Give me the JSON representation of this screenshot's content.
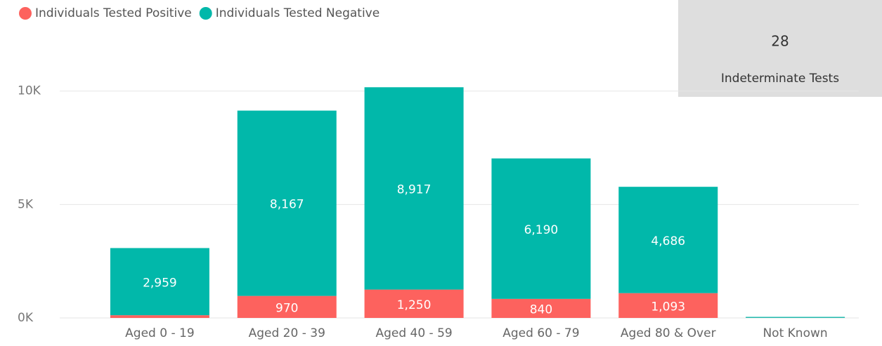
{
  "chart_data": {
    "type": "stacked-bar",
    "categories": [
      "Aged 0 - 19",
      "Aged 20 - 39",
      "Aged 40 - 59",
      "Aged 60 - 79",
      "Aged 80 & Over",
      "Not Known"
    ],
    "series": [
      {
        "name": "Individuals Tested Positive",
        "color": "#FD625E",
        "values": [
          120,
          970,
          1250,
          840,
          1093,
          5
        ],
        "value_labels": [
          null,
          "970",
          "1,250",
          "840",
          "1,093",
          null
        ]
      },
      {
        "name": "Individuals Tested Negative",
        "color": "#01B8AA",
        "values": [
          2959,
          8167,
          8917,
          6190,
          4686,
          40
        ],
        "value_labels": [
          "2,959",
          "8,167",
          "8,917",
          "6,190",
          "4,686",
          null
        ]
      }
    ],
    "ylim": [
      0,
      10300
    ],
    "yticks": [
      {
        "value": 0,
        "label": "0K"
      },
      {
        "value": 5000,
        "label": "5K"
      },
      {
        "value": 10000,
        "label": "10K"
      }
    ],
    "grid": true,
    "legend": "top-left"
  },
  "card": {
    "value": "28",
    "label": "Indeterminate Tests"
  }
}
